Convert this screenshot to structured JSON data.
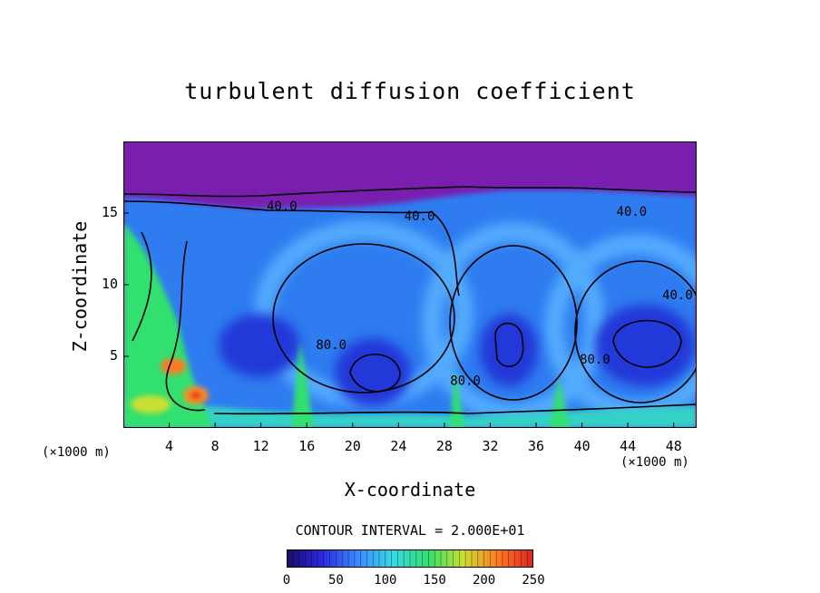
{
  "chart_data": {
    "type": "heatmap",
    "title": "turbulent diffusion coefficient",
    "xlabel": "X-coordinate",
    "ylabel": "Z-coordinate",
    "x_unit": "(×1000 m)",
    "y_unit": "(×1000 m)",
    "xlim": [
      0,
      50
    ],
    "ylim": [
      0,
      20
    ],
    "x_ticks": [
      4,
      8,
      12,
      16,
      20,
      24,
      28,
      32,
      36,
      40,
      44,
      48
    ],
    "y_ticks": [
      5,
      10,
      15
    ],
    "contour_interval_label": "CONTOUR INTERVAL = 2.000E+01",
    "contour_labels": [
      {
        "text": "40.0",
        "x": 12.5,
        "y": 15.2
      },
      {
        "text": "40.0",
        "x": 24.5,
        "y": 14.5
      },
      {
        "text": "40.0",
        "x": 43.0,
        "y": 14.8
      },
      {
        "text": "40.0",
        "x": 47.0,
        "y": 9.0
      },
      {
        "text": "80.0",
        "x": 16.8,
        "y": 5.5
      },
      {
        "text": "80.0",
        "x": 28.5,
        "y": 3.0
      },
      {
        "text": "80.0",
        "x": 39.8,
        "y": 4.5
      }
    ],
    "colorbar": {
      "min": 0,
      "max": 250,
      "ticks": [
        0,
        50,
        100,
        150,
        200,
        250
      ],
      "colors": [
        "#1a0a6a",
        "#2a2ae0",
        "#3a8aff",
        "#38d8e8",
        "#2ee070",
        "#c8e030",
        "#ff7a20",
        "#e02020"
      ]
    },
    "background_value_color": "#7a1eb0"
  }
}
